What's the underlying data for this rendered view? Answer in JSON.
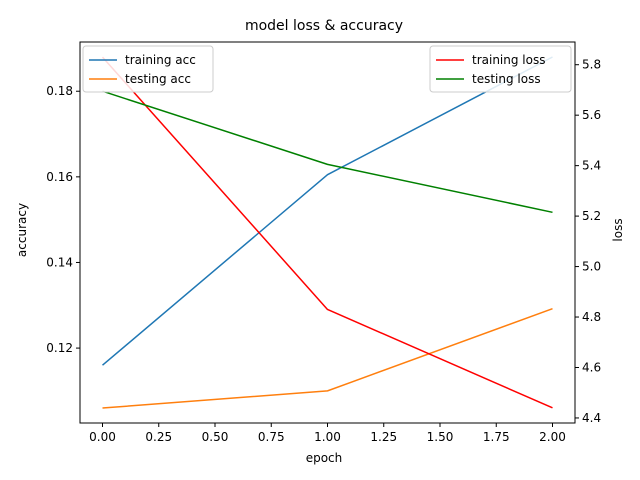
{
  "chart_data": {
    "type": "line",
    "title": "model loss & accuracy",
    "xlabel": "epoch",
    "x": [
      0,
      1,
      2
    ],
    "xlim": [
      -0.1,
      2.1
    ],
    "xticks": [
      0.0,
      0.25,
      0.5,
      0.75,
      1.0,
      1.25,
      1.5,
      1.75,
      2.0
    ],
    "xtick_labels": [
      "0.00",
      "0.25",
      "0.50",
      "0.75",
      "1.00",
      "1.25",
      "1.50",
      "1.75",
      "2.00"
    ],
    "grid": false,
    "left_axis": {
      "label": "accuracy",
      "ylim": [
        0.1025,
        0.1915
      ],
      "ticks": [
        0.12,
        0.14,
        0.16,
        0.18
      ],
      "tick_labels": [
        "0.12",
        "0.14",
        "0.16",
        "0.18"
      ],
      "legend_position": "upper-left",
      "series": [
        {
          "name": "training acc",
          "color": "#1f77b4",
          "values": [
            0.116,
            0.1605,
            0.188
          ]
        },
        {
          "name": "testing acc",
          "color": "#ff7f0e",
          "values": [
            0.106,
            0.11,
            0.1292
          ]
        }
      ]
    },
    "right_axis": {
      "label": "loss",
      "ylim": [
        4.38,
        5.89
      ],
      "ticks": [
        4.4,
        4.6,
        4.8,
        5.0,
        5.2,
        5.4,
        5.6,
        5.8
      ],
      "tick_labels": [
        "4.4",
        "4.6",
        "4.8",
        "5.0",
        "5.2",
        "5.4",
        "5.6",
        "5.8"
      ],
      "legend_position": "upper-right",
      "series": [
        {
          "name": "training loss",
          "color": "#ff0000",
          "values": [
            5.83,
            4.83,
            4.44
          ]
        },
        {
          "name": "testing loss",
          "color": "#008000",
          "values": [
            5.695,
            5.405,
            5.215
          ]
        }
      ]
    }
  }
}
